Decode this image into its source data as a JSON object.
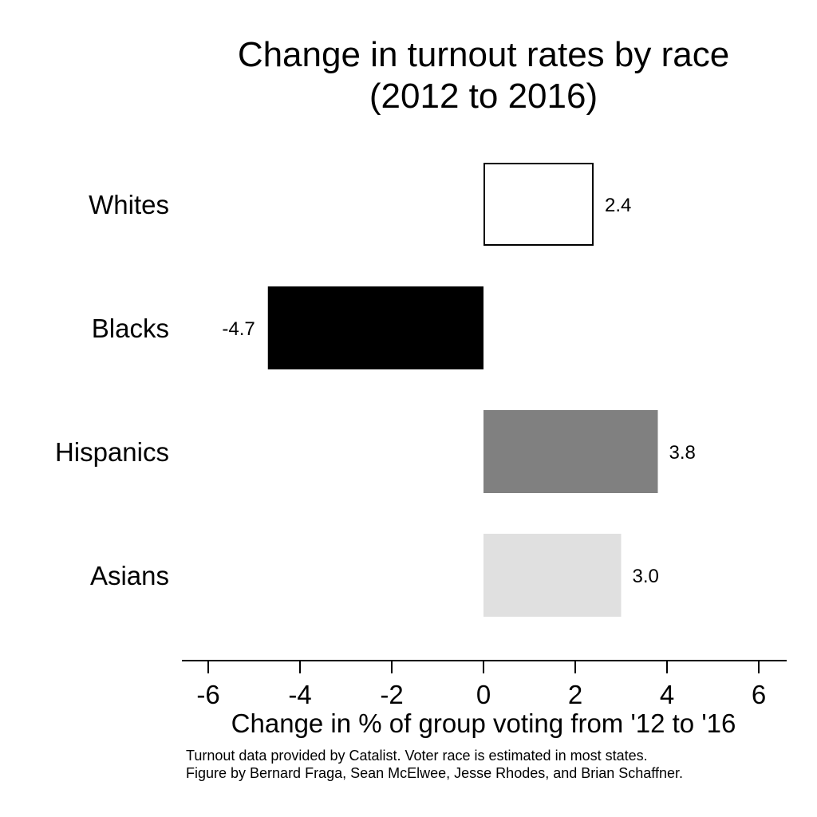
{
  "chart_data": {
    "type": "bar",
    "orientation": "horizontal",
    "title": [
      "Change in turnout rates by race",
      "(2012 to 2016)"
    ],
    "categories": [
      "Whites",
      "Blacks",
      "Hispanics",
      "Asians"
    ],
    "values": [
      2.4,
      -4.7,
      3.8,
      3.0
    ],
    "value_labels": [
      "2.4",
      "-4.7",
      "3.8",
      "3.0"
    ],
    "colors": [
      "#ffffff",
      "#000000",
      "#808080",
      "#e0e0e0"
    ],
    "bar_outline": "#000000",
    "xlabel": "Change in % of group voting from '12 to '16",
    "ylabel": "",
    "xlim": [
      -6.5,
      6.5
    ],
    "xticks": [
      -6,
      -4,
      -2,
      0,
      2,
      4,
      6
    ],
    "xtick_labels": [
      "-6",
      "-4",
      "-2",
      "0",
      "2",
      "4",
      "6"
    ],
    "grid": false,
    "legend": "none",
    "notes": [
      "Turnout data provided by Catalist. Voter race is estimated in most states.",
      "Figure by Bernard Fraga, Sean McElwee, Jesse Rhodes, and Brian Schaffner."
    ]
  }
}
